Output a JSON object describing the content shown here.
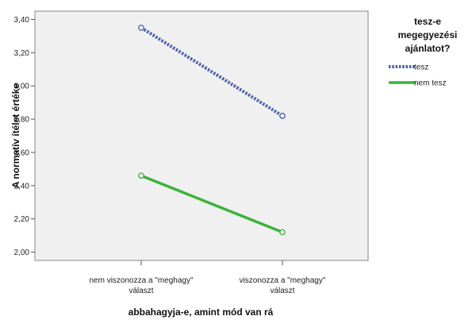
{
  "chart_data": {
    "type": "line",
    "categories": [
      [
        "nem viszonozza a \"meghagy\"",
        "választ"
      ],
      [
        "viszonozza a \"meghagy\"",
        "választ"
      ]
    ],
    "series": [
      {
        "name": "tesz",
        "values": [
          3.35,
          2.82
        ],
        "color": "#4a5ea8",
        "style": "dotted"
      },
      {
        "name": "nem tesz",
        "values": [
          2.46,
          2.12
        ],
        "color": "#3cb43c",
        "style": "solid"
      }
    ],
    "ylim": [
      1.95,
      3.45
    ],
    "yticks": [
      "2,00",
      "2,20",
      "2,40",
      "2,60",
      "2,80",
      "3,00",
      "3,20",
      "3,40"
    ],
    "ytick_values": [
      2.0,
      2.2,
      2.4,
      2.6,
      2.8,
      3.0,
      3.2,
      3.4
    ],
    "xlabel": "abbahagyja-e, amint mód van rá",
    "ylabel": "A normatív ítélet értéke",
    "legend": {
      "title_lines": [
        "tesz-e",
        "megegyezési",
        "ajánlatot?"
      ],
      "placement": "right"
    },
    "grid": false,
    "plot_background": "#f0f0f0"
  }
}
